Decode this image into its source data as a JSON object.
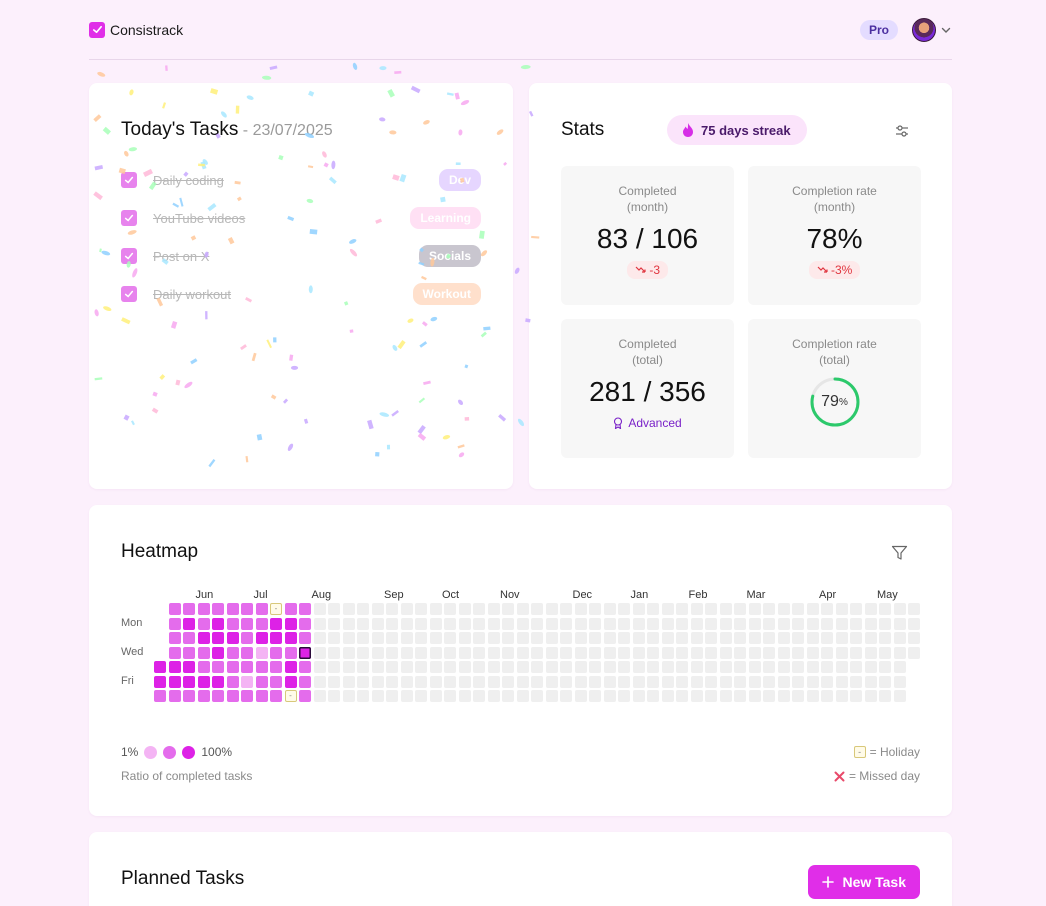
{
  "app": {
    "name": "Consistrack",
    "plan_badge": "Pro"
  },
  "tasks": {
    "title": "Today's Tasks",
    "date": " - 23/07/2025",
    "items": [
      {
        "label": "Daily coding",
        "tag": "Dev",
        "tag_bg": "#e6d6ff",
        "tag_color": "#ffffff"
      },
      {
        "label": "YouTube videos",
        "tag": "Learning",
        "tag_bg": "#ffe0f4",
        "tag_color": "#ffffff"
      },
      {
        "label": "Post on X",
        "tag": "Socials",
        "tag_bg": "#c9c6cf",
        "tag_color": "#ffffff"
      },
      {
        "label": "Daily workout",
        "tag": "Workout",
        "tag_bg": "#ffe0cc",
        "tag_color": "#ffffff"
      }
    ]
  },
  "stats": {
    "title": "Stats",
    "streak": "75 days streak",
    "boxes": {
      "month_completed": {
        "label1": "Completed",
        "label2": "(month)",
        "value": "83 / 106",
        "delta": "-3"
      },
      "month_rate": {
        "label1": "Completion rate",
        "label2": "(month)",
        "value": "78%",
        "delta": "-3%"
      },
      "total_completed": {
        "label1": "Completed",
        "label2": "(total)",
        "value": "281 / 356",
        "level": "Advanced"
      },
      "total_rate": {
        "label1": "Completion rate",
        "label2": "(total)",
        "value": "79",
        "unit": "%",
        "fraction": 0.79
      }
    }
  },
  "heatmap": {
    "title": "Heatmap",
    "months": [
      "Jun",
      "Jul",
      "Aug",
      "Sep",
      "Oct",
      "Nov",
      "Dec",
      "Jan",
      "Feb",
      "Mar",
      "Apr",
      "May"
    ],
    "day_labels": [
      "Mon",
      "Wed",
      "Fri"
    ],
    "colors": {
      "empty": "#efefef",
      "low": "#f4b4f4",
      "mid": "#e46cec",
      "high": "#dd22e6"
    },
    "legend": {
      "min": "1%",
      "max": "100%",
      "caption": "Ratio of completed tasks",
      "holiday": "= Holiday",
      "holiday_symbol": "-",
      "missed": "= Missed day"
    }
  },
  "planned": {
    "title": "Planned Tasks",
    "new_task_label": "New Task"
  }
}
